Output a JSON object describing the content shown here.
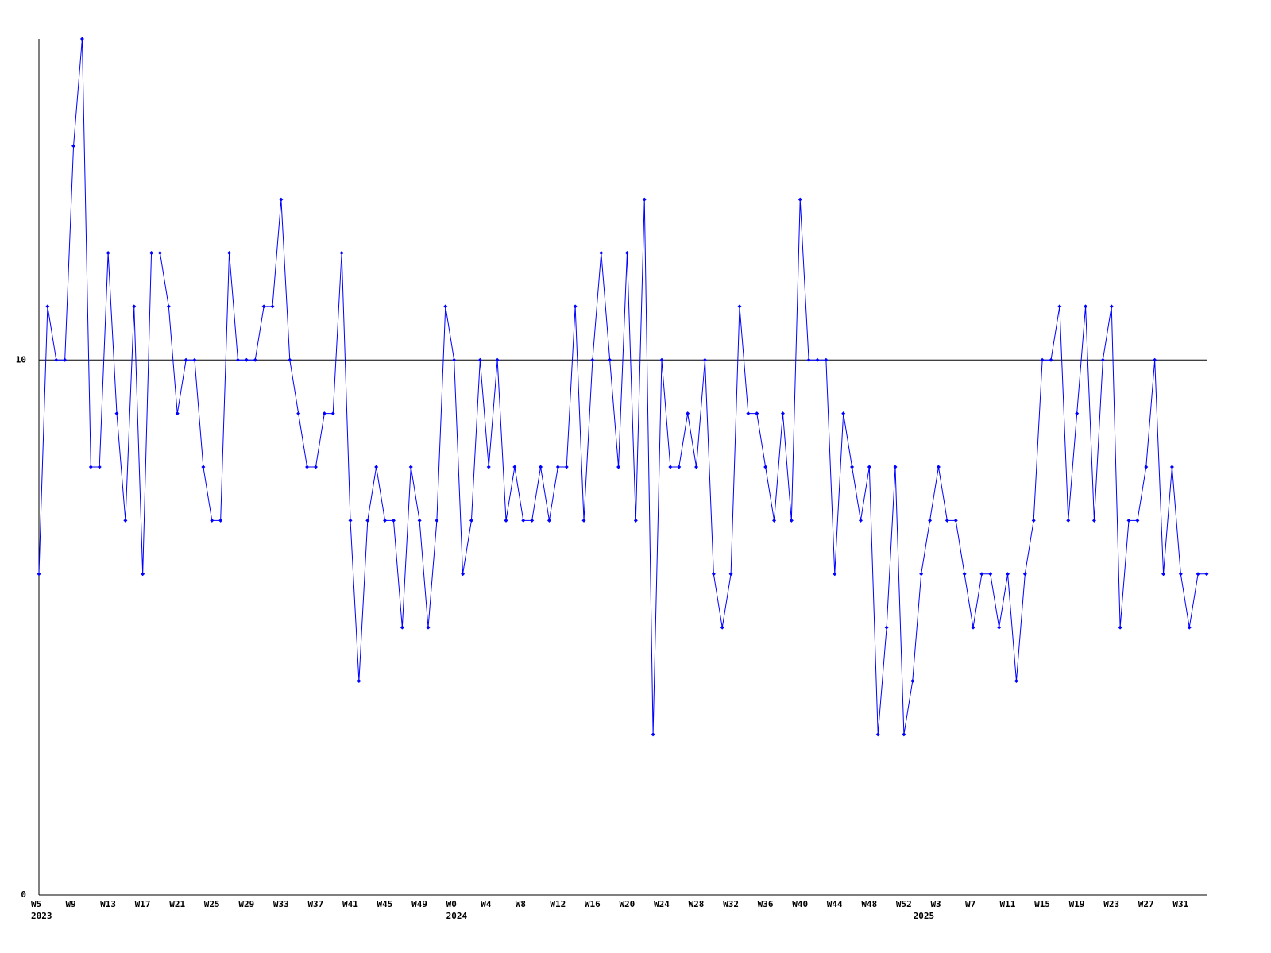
{
  "chart_data": {
    "type": "line",
    "color": "#0000ff",
    "grid": true,
    "ylim": [
      0,
      16
    ],
    "yticks": [
      0,
      10
    ],
    "categories": [
      "W5",
      null,
      null,
      null,
      "W9",
      null,
      null,
      null,
      "W13",
      null,
      null,
      null,
      "W17",
      null,
      null,
      null,
      "W21",
      null,
      null,
      null,
      "W25",
      null,
      null,
      null,
      "W29",
      null,
      null,
      null,
      "W33",
      null,
      null,
      null,
      "W37",
      null,
      null,
      null,
      "W41",
      null,
      null,
      null,
      "W45",
      null,
      null,
      null,
      "W49",
      null,
      null,
      null,
      "W0",
      null,
      null,
      null,
      "W4",
      null,
      null,
      null,
      "W8",
      null,
      null,
      null,
      "W12",
      null,
      null,
      null,
      "W16",
      null,
      null,
      null,
      "W20",
      null,
      null,
      null,
      "W24",
      null,
      null,
      null,
      "W28",
      null,
      null,
      null,
      "W32",
      null,
      null,
      null,
      "W36",
      null,
      null,
      null,
      "W40",
      null,
      null,
      null,
      "W44",
      null,
      null,
      null,
      "W48",
      null,
      null,
      null,
      "W52",
      null,
      null,
      null,
      "W3",
      null,
      null,
      null,
      "W7",
      null,
      null,
      null,
      "W11",
      null,
      null,
      null,
      "W15",
      null,
      null,
      null,
      "W19",
      null,
      null,
      null,
      "W23",
      null,
      null,
      null,
      "W27",
      null,
      null,
      null,
      "W31",
      null,
      null,
      null
    ],
    "category_groups": [
      "2023",
      null,
      null,
      null,
      null,
      null,
      null,
      null,
      null,
      null,
      null,
      null,
      null,
      null,
      null,
      null,
      null,
      null,
      null,
      null,
      null,
      null,
      null,
      null,
      null,
      null,
      null,
      null,
      null,
      null,
      null,
      null,
      null,
      null,
      null,
      null,
      null,
      null,
      null,
      null,
      null,
      null,
      null,
      null,
      null,
      null,
      null,
      null,
      "2024",
      null,
      null,
      null,
      null,
      null,
      null,
      null,
      null,
      null,
      null,
      null,
      null,
      null,
      null,
      null,
      null,
      null,
      null,
      null,
      null,
      null,
      null,
      null,
      null,
      null,
      null,
      null,
      null,
      null,
      null,
      null,
      null,
      null,
      null,
      null,
      null,
      null,
      null,
      null,
      null,
      null,
      null,
      null,
      null,
      null,
      null,
      null,
      null,
      null,
      null,
      null,
      null,
      null,
      "2025",
      null,
      null,
      null,
      null,
      null,
      null,
      null,
      null,
      null,
      null,
      null,
      null,
      null,
      null,
      null,
      null,
      null,
      null,
      null,
      null,
      null,
      null,
      null,
      null,
      null,
      null,
      null,
      null,
      null,
      null,
      null,
      null,
      null,
      null
    ],
    "values": [
      6,
      11,
      10,
      10,
      14,
      16,
      8,
      8,
      12,
      9,
      7,
      11,
      6,
      12,
      12,
      11,
      9,
      10,
      10,
      8,
      7,
      7,
      12,
      10,
      10,
      10,
      11,
      11,
      13,
      10,
      9,
      8,
      8,
      9,
      9,
      12,
      7,
      4,
      7,
      8,
      7,
      7,
      5,
      8,
      7,
      5,
      7,
      11,
      10,
      6,
      7,
      10,
      8,
      10,
      7,
      8,
      7,
      7,
      8,
      7,
      8,
      8,
      11,
      7,
      10,
      12,
      10,
      8,
      12,
      7,
      13,
      3,
      10,
      8,
      8,
      9,
      8,
      10,
      6,
      5,
      6,
      11,
      9,
      9,
      8,
      7,
      9,
      7,
      13,
      10,
      10,
      10,
      6,
      9,
      8,
      7,
      8,
      3,
      5,
      8,
      3,
      4,
      6,
      7,
      8,
      7,
      7,
      6,
      5,
      6,
      6,
      5,
      6,
      4,
      6,
      7,
      10,
      10,
      11,
      7,
      9,
      11,
      7,
      10,
      11,
      5,
      7,
      7,
      8,
      10,
      6,
      8,
      6,
      5,
      6,
      6
    ]
  }
}
